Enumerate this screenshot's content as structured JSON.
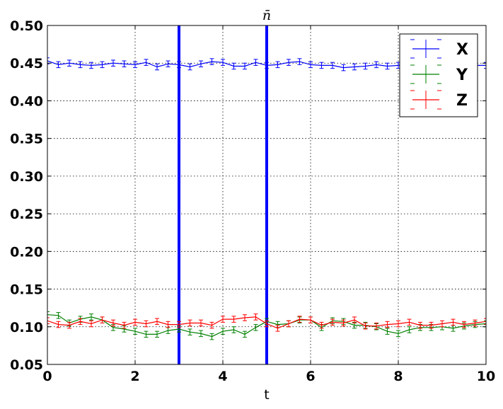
{
  "chart_data": {
    "type": "line",
    "title": "n̄",
    "xlabel": "t",
    "ylabel": "",
    "xlim": [
      0,
      10
    ],
    "ylim": [
      0.05,
      0.5
    ],
    "xticks": [
      0,
      2,
      4,
      6,
      8,
      10
    ],
    "xtick_labels": [
      "0",
      "2",
      "4",
      "6",
      "8",
      "10"
    ],
    "yticks": [
      0.05,
      0.1,
      0.15,
      0.2,
      0.25,
      0.3,
      0.35,
      0.4,
      0.45,
      0.5
    ],
    "ytick_labels": [
      "0.05",
      "0.10",
      "0.15",
      "0.20",
      "0.25",
      "0.30",
      "0.35",
      "0.40",
      "0.45",
      "0.50"
    ],
    "grid": true,
    "legend_position": "top-right",
    "vertical_lines": [
      {
        "x": 3,
        "color": "#0000ff"
      },
      {
        "x": 5,
        "color": "#0000ff"
      }
    ],
    "x": [
      0.0,
      0.25,
      0.5,
      0.75,
      1.0,
      1.25,
      1.5,
      1.75,
      2.0,
      2.25,
      2.5,
      2.75,
      3.0,
      3.25,
      3.5,
      3.75,
      4.0,
      4.25,
      4.5,
      4.75,
      5.0,
      5.25,
      5.5,
      5.75,
      6.0,
      6.25,
      6.5,
      6.75,
      7.0,
      7.25,
      7.5,
      7.75,
      8.0,
      8.25,
      8.5,
      8.75,
      9.0,
      9.25,
      9.5,
      9.75,
      10.0
    ],
    "series": [
      {
        "name": "X",
        "color": "#0000ff",
        "values": [
          0.453,
          0.448,
          0.45,
          0.448,
          0.447,
          0.448,
          0.45,
          0.449,
          0.448,
          0.451,
          0.445,
          0.449,
          0.448,
          0.445,
          0.449,
          0.452,
          0.451,
          0.446,
          0.446,
          0.451,
          0.447,
          0.448,
          0.451,
          0.452,
          0.448,
          0.447,
          0.447,
          0.444,
          0.445,
          0.446,
          0.448,
          0.446,
          0.447,
          0.449,
          0.447,
          0.446,
          0.448,
          0.45,
          0.447,
          0.447,
          0.447
        ],
        "error": 0.004
      },
      {
        "name": "Y",
        "color": "#008000",
        "values": [
          0.116,
          0.115,
          0.105,
          0.11,
          0.113,
          0.109,
          0.099,
          0.097,
          0.094,
          0.09,
          0.09,
          0.095,
          0.097,
          0.093,
          0.091,
          0.087,
          0.094,
          0.096,
          0.09,
          0.099,
          0.107,
          0.103,
          0.104,
          0.109,
          0.109,
          0.099,
          0.108,
          0.107,
          0.102,
          0.102,
          0.1,
          0.094,
          0.091,
          0.096,
          0.099,
          0.099,
          0.1,
          0.098,
          0.101,
          0.103,
          0.104
        ],
        "error": 0.004
      },
      {
        "name": "Z",
        "color": "#ff0000",
        "values": [
          0.108,
          0.103,
          0.102,
          0.107,
          0.104,
          0.109,
          0.105,
          0.102,
          0.106,
          0.104,
          0.107,
          0.103,
          0.103,
          0.105,
          0.105,
          0.102,
          0.11,
          0.11,
          0.112,
          0.113,
          0.104,
          0.098,
          0.104,
          0.11,
          0.109,
          0.102,
          0.106,
          0.105,
          0.109,
          0.101,
          0.101,
          0.103,
          0.104,
          0.106,
          0.102,
          0.102,
          0.104,
          0.106,
          0.103,
          0.105,
          0.107
        ],
        "error": 0.004
      }
    ]
  }
}
